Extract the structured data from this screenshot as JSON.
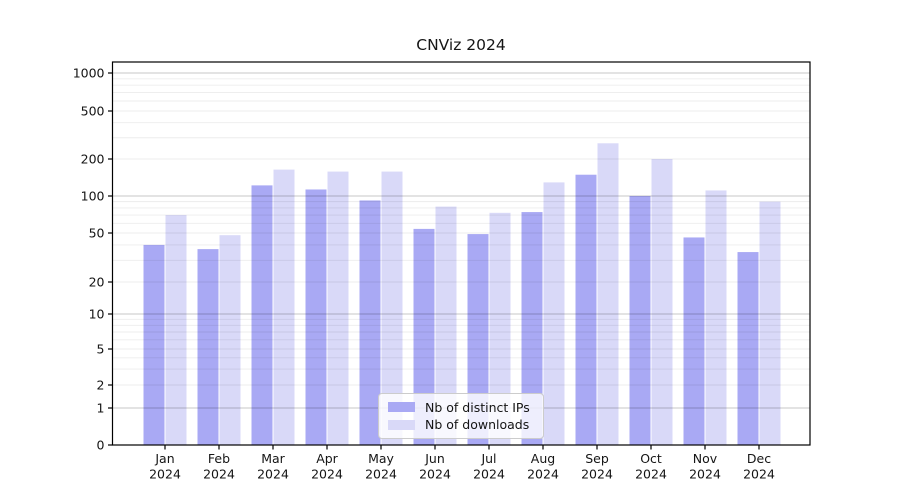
{
  "chart_data": {
    "type": "bar",
    "title": "CNViz 2024",
    "categories": [
      "Jan",
      "Feb",
      "Mar",
      "Apr",
      "May",
      "Jun",
      "Jul",
      "Aug",
      "Sep",
      "Oct",
      "Nov",
      "Dec"
    ],
    "x_year_label": "2024",
    "series": [
      {
        "name": "Nb of distinct IPs",
        "color": "#a9a9f4",
        "values": [
          40,
          37,
          122,
          113,
          92,
          54,
          49,
          74,
          149,
          100,
          46,
          35
        ]
      },
      {
        "name": "Nb of downloads",
        "color": "#d9d9f8",
        "values": [
          70,
          48,
          164,
          158,
          158,
          82,
          73,
          129,
          270,
          200,
          111,
          90
        ]
      }
    ],
    "xlabel": "",
    "ylabel": "",
    "y_axis": {
      "scale": "asinh (log-like above 1, compressed near 0)",
      "ticks": [
        0,
        1,
        2,
        5,
        10,
        20,
        50,
        100,
        200,
        500,
        1000
      ],
      "ylim": [
        0,
        1250
      ]
    },
    "grid": {
      "on": true,
      "major_lines_at": [
        1,
        10,
        100,
        1000
      ],
      "minor_lines": "2-9 subdivisions of each decade"
    },
    "legend": {
      "position": "lower center",
      "entries": [
        "Nb of distinct IPs",
        "Nb of downloads"
      ]
    }
  }
}
